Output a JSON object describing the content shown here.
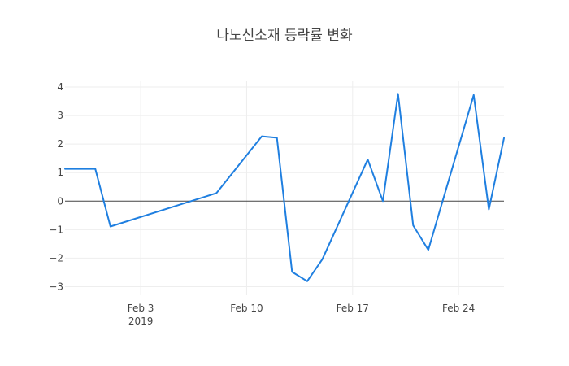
{
  "chart_data": {
    "type": "line",
    "title": "나노신소재 등락률 변화",
    "xlabel": "",
    "ylabel": "",
    "x_axis": {
      "type": "date",
      "range": [
        "2019-01-29",
        "2019-02-27"
      ],
      "ticks": [
        {
          "date": "2019-02-03",
          "label": "Feb 3",
          "sublabel": "2019"
        },
        {
          "date": "2019-02-10",
          "label": "Feb 10",
          "sublabel": ""
        },
        {
          "date": "2019-02-17",
          "label": "Feb 17",
          "sublabel": ""
        },
        {
          "date": "2019-02-24",
          "label": "Feb 24",
          "sublabel": ""
        }
      ]
    },
    "y_axis": {
      "range": [
        -3.3,
        4.2
      ],
      "ticks": [
        {
          "value": 4,
          "label": "4"
        },
        {
          "value": 3,
          "label": "3"
        },
        {
          "value": 2,
          "label": "2"
        },
        {
          "value": 1,
          "label": "1"
        },
        {
          "value": 0,
          "label": "0"
        },
        {
          "value": -1,
          "label": "−1"
        },
        {
          "value": -2,
          "label": "−2"
        },
        {
          "value": -3,
          "label": "−3"
        }
      ]
    },
    "grid": true,
    "zero_line": true,
    "series": [
      {
        "color": "#1f7fe0",
        "points": [
          {
            "x": "2019-01-29",
            "y": 1.13
          },
          {
            "x": "2019-01-31",
            "y": 1.13
          },
          {
            "x": "2019-02-01",
            "y": -0.89
          },
          {
            "x": "2019-02-08",
            "y": 0.28
          },
          {
            "x": "2019-02-11",
            "y": 2.27
          },
          {
            "x": "2019-02-12",
            "y": 2.22
          },
          {
            "x": "2019-02-13",
            "y": -2.48
          },
          {
            "x": "2019-02-14",
            "y": -2.81
          },
          {
            "x": "2019-02-15",
            "y": -2.04
          },
          {
            "x": "2019-02-18",
            "y": 1.46
          },
          {
            "x": "2019-02-19",
            "y": 0.0
          },
          {
            "x": "2019-02-20",
            "y": 3.76
          },
          {
            "x": "2019-02-21",
            "y": -0.85
          },
          {
            "x": "2019-02-22",
            "y": -1.71
          },
          {
            "x": "2019-02-25",
            "y": 3.72
          },
          {
            "x": "2019-02-26",
            "y": -0.29
          },
          {
            "x": "2019-02-27",
            "y": 2.21
          }
        ]
      }
    ]
  }
}
